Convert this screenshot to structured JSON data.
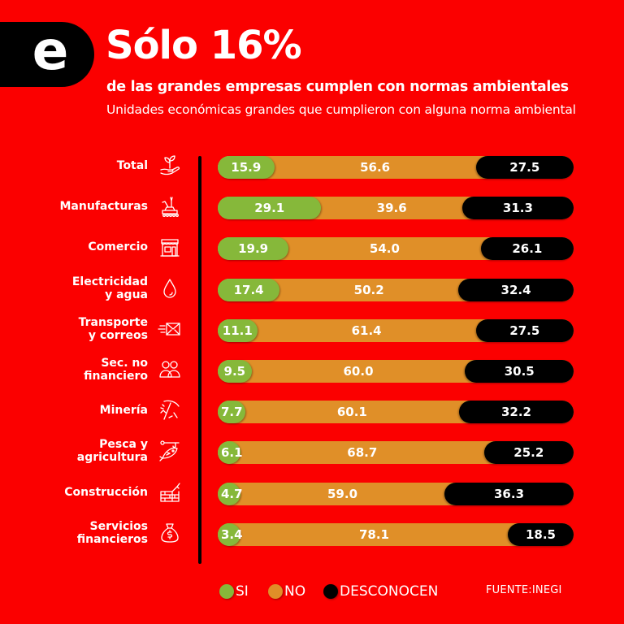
{
  "header": {
    "logo_letter": "e",
    "title": "Sólo 16%",
    "subtitle": "de las grandes empresas cumplen con normas ambientales",
    "description": "Unidades económicas grandes que cumplieron con alguna norma ambiental"
  },
  "colors": {
    "background": "#fb0000",
    "si": "#86b83a",
    "no": "#e08f28",
    "desconocen": "#000000"
  },
  "legend": {
    "items": [
      {
        "label": "SI",
        "color": "#86b83a"
      },
      {
        "label": "NO",
        "color": "#e08f28"
      },
      {
        "label": "DESCONOCEN",
        "color": "#000000"
      }
    ],
    "source": "FUENTE:INEGI"
  },
  "chart_data": {
    "type": "bar",
    "orientation": "horizontal",
    "stacked": true,
    "title": "Sólo 16%",
    "subtitle": "de las grandes empresas cumplen con normas ambientales",
    "xlabel": "",
    "ylabel": "",
    "xlim": [
      0,
      100
    ],
    "unit": "%",
    "legend_position": "bottom",
    "grid": false,
    "categories": [
      {
        "label_lines": [
          "Total"
        ],
        "icon": "plant-in-hand-icon"
      },
      {
        "label_lines": [
          "Manufacturas"
        ],
        "icon": "factory-robot-icon"
      },
      {
        "label_lines": [
          "Comercio"
        ],
        "icon": "storefront-icon"
      },
      {
        "label_lines": [
          "Electricidad",
          "y agua"
        ],
        "icon": "water-drop-icon"
      },
      {
        "label_lines": [
          "Transporte",
          "y correos"
        ],
        "icon": "fast-mail-icon"
      },
      {
        "label_lines": [
          "Sec. no",
          "financiero"
        ],
        "icon": "people-icon"
      },
      {
        "label_lines": [
          "Minería"
        ],
        "icon": "pickaxe-icon"
      },
      {
        "label_lines": [
          "Pesca y",
          "agricultura"
        ],
        "icon": "fish-hook-icon"
      },
      {
        "label_lines": [
          "Construcción"
        ],
        "icon": "brick-wall-trowel-icon"
      },
      {
        "label_lines": [
          "Servicios",
          "financieros"
        ],
        "icon": "money-bag-icon"
      }
    ],
    "series": [
      {
        "name": "SI",
        "values": [
          15.9,
          29.1,
          19.9,
          17.4,
          11.1,
          9.5,
          7.7,
          6.1,
          4.7,
          3.4
        ]
      },
      {
        "name": "NO",
        "values": [
          56.6,
          39.6,
          54.0,
          50.2,
          61.4,
          60.0,
          60.1,
          68.7,
          59.0,
          78.1
        ]
      },
      {
        "name": "DESCONOCEN",
        "values": [
          27.5,
          31.3,
          26.1,
          32.4,
          27.5,
          30.5,
          32.2,
          25.2,
          36.3,
          18.5
        ]
      }
    ]
  }
}
